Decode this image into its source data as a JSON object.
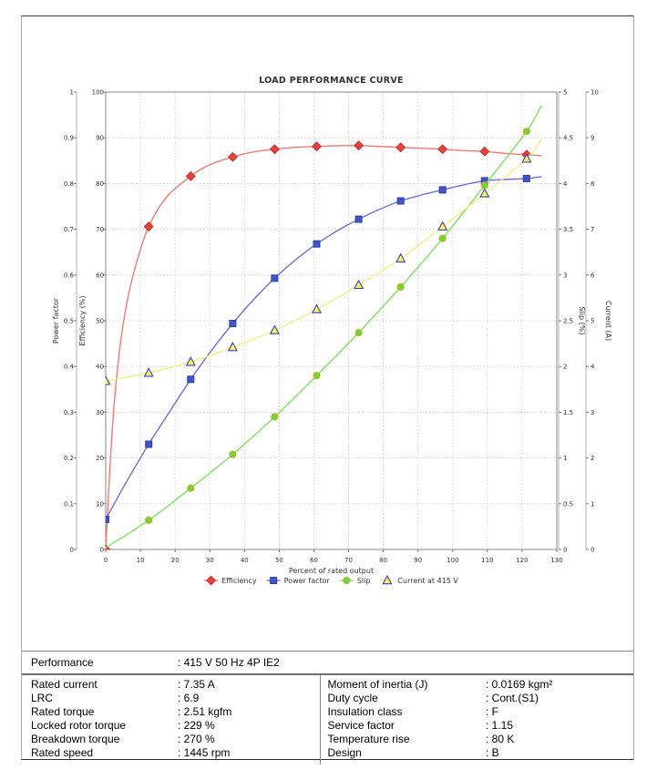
{
  "chart_data": {
    "type": "line",
    "title": "LOAD PERFORMANCE CURVE",
    "xlabel": "Percent of rated output",
    "x_axis": {
      "min": 0,
      "max": 130,
      "step": 10
    },
    "grid": true,
    "legend_position": "bottom-center",
    "axes": {
      "power_factor": {
        "label": "Power factor",
        "min": 0,
        "max": 1,
        "step": 0.1,
        "side": "left"
      },
      "efficiency": {
        "label": "Efficiency (%)",
        "min": 0,
        "max": 100,
        "step": 10,
        "side": "left"
      },
      "slip": {
        "label": "Slip (%)",
        "min": 0,
        "max": 5,
        "step": 0.5,
        "side": "right"
      },
      "current": {
        "label": "Current (A)",
        "min": 0,
        "max": 10,
        "step": 1,
        "side": "right"
      }
    },
    "series": [
      {
        "name": "Efficiency",
        "axis": "efficiency",
        "marker": "diamond",
        "marker_fill": "#e8403a",
        "marker_stroke": "#c62f2a",
        "line_color": "#f37a72",
        "markers": [
          [
            0,
            0
          ],
          [
            12.4,
            70.6
          ],
          [
            24.5,
            81.6
          ],
          [
            36.6,
            85.8
          ],
          [
            48.7,
            87.5
          ],
          [
            60.8,
            88.1
          ],
          [
            72.9,
            88.3
          ],
          [
            85.0,
            87.9
          ],
          [
            97.1,
            87.5
          ],
          [
            109.2,
            87.0
          ],
          [
            121.3,
            86.3
          ]
        ],
        "line": [
          [
            0,
            0
          ],
          [
            0.8,
            12
          ],
          [
            1.7,
            24
          ],
          [
            2.8,
            35
          ],
          [
            4.4,
            46
          ],
          [
            6.5,
            55.5
          ],
          [
            9.2,
            63.5
          ],
          [
            12.4,
            70.6
          ],
          [
            17.5,
            77
          ],
          [
            24.5,
            81.6
          ],
          [
            30,
            84.1
          ],
          [
            36.6,
            85.8
          ],
          [
            42.5,
            86.9
          ],
          [
            48.7,
            87.5
          ],
          [
            54.5,
            87.9
          ],
          [
            60.8,
            88.1
          ],
          [
            66.5,
            88.25
          ],
          [
            72.9,
            88.3
          ],
          [
            79,
            88.1
          ],
          [
            85,
            87.9
          ],
          [
            91,
            87.7
          ],
          [
            97.1,
            87.5
          ],
          [
            103,
            87.2
          ],
          [
            109.2,
            87.0
          ],
          [
            115,
            86.6
          ],
          [
            121.3,
            86.3
          ],
          [
            125.5,
            86.1
          ]
        ]
      },
      {
        "name": "Power factor",
        "axis": "power_factor",
        "marker": "square",
        "marker_fill": "#4155c8",
        "marker_stroke": "#2c3e9e",
        "line_color": "#6f6fdd",
        "markers": [
          [
            0,
            0.066
          ],
          [
            12.4,
            0.23
          ],
          [
            24.5,
            0.372
          ],
          [
            36.6,
            0.494
          ],
          [
            48.7,
            0.593
          ],
          [
            60.8,
            0.668
          ],
          [
            72.9,
            0.722
          ],
          [
            85.0,
            0.762
          ],
          [
            97.1,
            0.786
          ],
          [
            109.2,
            0.806
          ],
          [
            121.3,
            0.811
          ]
        ],
        "line": [
          [
            0,
            0.066
          ],
          [
            6,
            0.148
          ],
          [
            12.4,
            0.23
          ],
          [
            18.5,
            0.302
          ],
          [
            24.5,
            0.372
          ],
          [
            30.5,
            0.435
          ],
          [
            36.6,
            0.494
          ],
          [
            42.6,
            0.546
          ],
          [
            48.7,
            0.593
          ],
          [
            54.7,
            0.633
          ],
          [
            60.8,
            0.668
          ],
          [
            66.8,
            0.697
          ],
          [
            72.9,
            0.722
          ],
          [
            79,
            0.744
          ],
          [
            85,
            0.762
          ],
          [
            91,
            0.775
          ],
          [
            97.1,
            0.786
          ],
          [
            103.1,
            0.797
          ],
          [
            109.2,
            0.806
          ],
          [
            115.2,
            0.809
          ],
          [
            121.3,
            0.811
          ],
          [
            125.5,
            0.815
          ]
        ]
      },
      {
        "name": "Slip",
        "axis": "slip",
        "marker": "circle",
        "marker_fill": "#66d93c",
        "marker_stroke": "#d9a520",
        "line_color": "#7ce35f",
        "markers": [
          [
            12.4,
            0.32
          ],
          [
            24.5,
            0.67
          ],
          [
            36.6,
            1.04
          ],
          [
            48.7,
            1.45
          ],
          [
            60.8,
            1.9
          ],
          [
            72.9,
            2.37
          ],
          [
            85.0,
            2.87
          ],
          [
            97.1,
            3.4
          ],
          [
            109.2,
            3.98
          ],
          [
            121.3,
            4.57
          ]
        ],
        "line": [
          [
            0,
            0.02
          ],
          [
            12.4,
            0.32
          ],
          [
            24.5,
            0.67
          ],
          [
            36.6,
            1.04
          ],
          [
            48.7,
            1.45
          ],
          [
            60.8,
            1.9
          ],
          [
            72.9,
            2.37
          ],
          [
            85.0,
            2.87
          ],
          [
            97.1,
            3.4
          ],
          [
            109.2,
            3.98
          ],
          [
            121.3,
            4.57
          ],
          [
            125.5,
            4.85
          ]
        ]
      },
      {
        "name": "Current at 415 V",
        "axis": "current",
        "marker": "triangle",
        "marker_fill": "#f7f75a",
        "marker_stroke": "#3b3bd1",
        "line_color": "#f2ee85",
        "markers": [
          [
            0,
            3.68
          ],
          [
            12.4,
            3.86
          ],
          [
            24.5,
            4.1
          ],
          [
            36.6,
            4.42
          ],
          [
            48.7,
            4.79
          ],
          [
            60.8,
            5.25
          ],
          [
            72.9,
            5.78
          ],
          [
            85.0,
            6.36
          ],
          [
            97.1,
            7.06
          ],
          [
            109.2,
            7.78
          ],
          [
            121.3,
            8.54
          ]
        ],
        "line": [
          [
            0,
            3.68
          ],
          [
            12.4,
            3.86
          ],
          [
            24.5,
            4.1
          ],
          [
            36.6,
            4.42
          ],
          [
            48.7,
            4.79
          ],
          [
            60.8,
            5.25
          ],
          [
            72.9,
            5.78
          ],
          [
            85.0,
            6.36
          ],
          [
            97.1,
            7.06
          ],
          [
            109.2,
            7.78
          ],
          [
            121.3,
            8.54
          ],
          [
            125.5,
            8.97
          ]
        ]
      }
    ]
  },
  "table": {
    "header": {
      "label": "Performance",
      "value": ": 415 V 50 Hz 4P IE2"
    },
    "rows": [
      {
        "l1": "Rated current",
        "v1": ": 7.35 A",
        "l2": "Moment of inertia (J)",
        "v2": ": 0.0169 kgm²"
      },
      {
        "l1": "LRC",
        "v1": ": 6.9",
        "l2": "Duty cycle",
        "v2": ": Cont.(S1)"
      },
      {
        "l1": "Rated torque",
        "v1": ": 2.51 kgfm",
        "l2": "Insulation class",
        "v2": ": F"
      },
      {
        "l1": "Locked rotor torque",
        "v1": ": 229 %",
        "l2": "Service factor",
        "v2": ": 1.15"
      },
      {
        "l1": "Breakdown torque",
        "v1": ": 270 %",
        "l2": "Temperature rise",
        "v2": ": 80 K"
      },
      {
        "l1": "Rated speed",
        "v1": ": 1445 rpm",
        "l2": "Design",
        "v2": ": B"
      }
    ]
  }
}
